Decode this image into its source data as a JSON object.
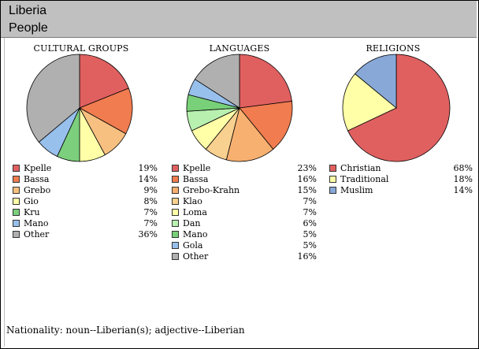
{
  "header": {
    "title": "Liberia",
    "subtitle": "People"
  },
  "chart_data": [
    {
      "type": "pie",
      "title": "CULTURAL GROUPS",
      "slices": [
        {
          "label": "Kpelle",
          "value": 19,
          "display": "19%",
          "color": "#e06060"
        },
        {
          "label": "Bassa",
          "value": 14,
          "display": "14%",
          "color": "#f07c50"
        },
        {
          "label": "Grebo",
          "value": 9,
          "display": "9%",
          "color": "#f8c080"
        },
        {
          "label": "Gio",
          "value": 8,
          "display": "8%",
          "color": "#ffffa8"
        },
        {
          "label": "Kru",
          "value": 7,
          "display": "7%",
          "color": "#7ccf7c"
        },
        {
          "label": "Mano",
          "value": 7,
          "display": "7%",
          "color": "#98c0ec"
        },
        {
          "label": "Other",
          "value": 36,
          "display": "36%",
          "color": "#b0b0b0"
        }
      ]
    },
    {
      "type": "pie",
      "title": "LANGUAGES",
      "slices": [
        {
          "label": "Kpelle",
          "value": 23,
          "display": "23%",
          "color": "#e06060"
        },
        {
          "label": "Bassa",
          "value": 16,
          "display": "16%",
          "color": "#f07c50"
        },
        {
          "label": "Grebo-Krahn",
          "value": 15,
          "display": "15%",
          "color": "#f8b070"
        },
        {
          "label": "Klao",
          "value": 7,
          "display": "7%",
          "color": "#f8d090"
        },
        {
          "label": "Loma",
          "value": 7,
          "display": "7%",
          "color": "#ffffa8"
        },
        {
          "label": "Dan",
          "value": 6,
          "display": "6%",
          "color": "#b8f0b0"
        },
        {
          "label": "Mano",
          "value": 5,
          "display": "5%",
          "color": "#78d078"
        },
        {
          "label": "Gola",
          "value": 5,
          "display": "5%",
          "color": "#98c0ec"
        },
        {
          "label": "Other",
          "value": 16,
          "display": "16%",
          "color": "#b0b0b0"
        }
      ]
    },
    {
      "type": "pie",
      "title": "RELIGIONS",
      "slices": [
        {
          "label": "Christian",
          "value": 68,
          "display": "68%",
          "color": "#e06060"
        },
        {
          "label": "Traditional",
          "value": 18,
          "display": "18%",
          "color": "#ffffa8"
        },
        {
          "label": "Muslim",
          "value": 14,
          "display": "14%",
          "color": "#88a8d8"
        }
      ]
    }
  ],
  "footer": {
    "nationality": "Nationality:  noun--Liberian(s);  adjective--Liberian"
  }
}
